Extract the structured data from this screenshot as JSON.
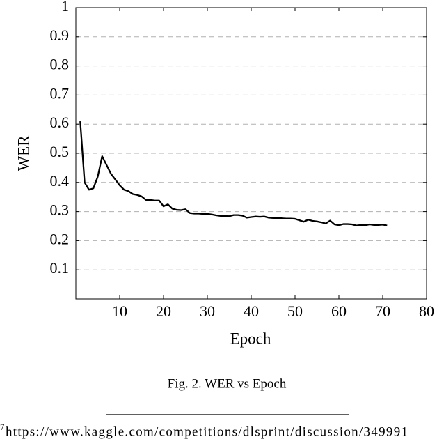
{
  "chart_data": {
    "type": "line",
    "x_label": "Epoch",
    "y_label": "WER",
    "caption": "Fig. 2.  WER vs Epoch",
    "x": [
      1,
      2,
      3,
      4,
      5,
      6,
      7,
      8,
      9,
      10,
      11,
      12,
      13,
      14,
      15,
      16,
      17,
      18,
      19,
      20,
      21,
      22,
      23,
      24,
      25,
      26,
      27,
      28,
      29,
      30,
      31,
      32,
      33,
      34,
      35,
      36,
      37,
      38,
      39,
      40,
      41,
      42,
      43,
      44,
      45,
      46,
      47,
      48,
      49,
      50,
      51,
      52,
      53,
      54,
      55,
      56,
      57,
      58,
      59,
      60,
      61,
      62,
      63,
      64,
      65,
      66,
      67,
      68,
      69,
      70,
      71
    ],
    "values": [
      0.61,
      0.4,
      0.375,
      0.38,
      0.42,
      0.49,
      0.46,
      0.43,
      0.41,
      0.39,
      0.375,
      0.37,
      0.36,
      0.357,
      0.352,
      0.34,
      0.34,
      0.338,
      0.338,
      0.318,
      0.325,
      0.31,
      0.306,
      0.305,
      0.308,
      0.295,
      0.293,
      0.293,
      0.292,
      0.292,
      0.29,
      0.287,
      0.285,
      0.285,
      0.284,
      0.288,
      0.288,
      0.286,
      0.279,
      0.281,
      0.283,
      0.282,
      0.283,
      0.279,
      0.278,
      0.277,
      0.277,
      0.276,
      0.276,
      0.275,
      0.27,
      0.265,
      0.272,
      0.268,
      0.266,
      0.263,
      0.259,
      0.269,
      0.256,
      0.253,
      0.257,
      0.257,
      0.256,
      0.252,
      0.254,
      0.253,
      0.256,
      0.254,
      0.254,
      0.255,
      0.252
    ],
    "color": "#000000",
    "xlim": [
      0,
      80
    ],
    "xticks": [
      10,
      20,
      30,
      40,
      50,
      60,
      70,
      80
    ],
    "ylim": [
      0,
      1
    ],
    "yticks": [
      0.1,
      0.2,
      0.3,
      0.4,
      0.5,
      0.6,
      0.7,
      0.8,
      0.9,
      1
    ],
    "grid": true
  },
  "footnote": {
    "marker": "7",
    "text": "https://www.kaggle.com/competitions/dlsprint/discussion/349991"
  }
}
